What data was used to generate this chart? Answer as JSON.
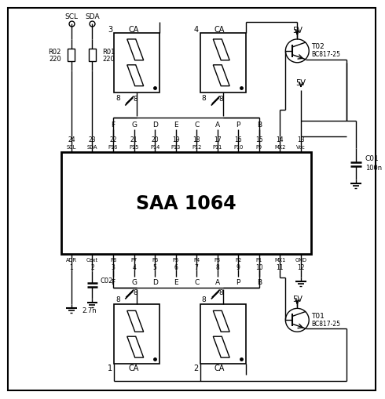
{
  "bg_color": "#ffffff",
  "line_color": "#000000",
  "chip_label": "SAA 1064",
  "top_pins": [
    "SCL",
    "SDA",
    "P16",
    "P15",
    "P14",
    "P13",
    "P12",
    "P11",
    "P10",
    "P9",
    "MX2",
    "Vcc"
  ],
  "top_pin_nums": [
    "24",
    "23",
    "22",
    "21",
    "20",
    "19",
    "18",
    "17",
    "16",
    "15",
    "14",
    "13"
  ],
  "bottom_pins": [
    "ADR",
    "Cext",
    "P8",
    "P7",
    "P6",
    "P5",
    "P4",
    "P3",
    "P2",
    "P1",
    "MX1",
    "GND"
  ],
  "bottom_pin_nums": [
    "1",
    "2",
    "3",
    "4",
    "5",
    "6",
    "7",
    "8",
    "9",
    "10",
    "11",
    "12"
  ],
  "seg_labels": [
    "F",
    "G",
    "D",
    "E",
    "C",
    "A",
    "P",
    "B"
  ]
}
